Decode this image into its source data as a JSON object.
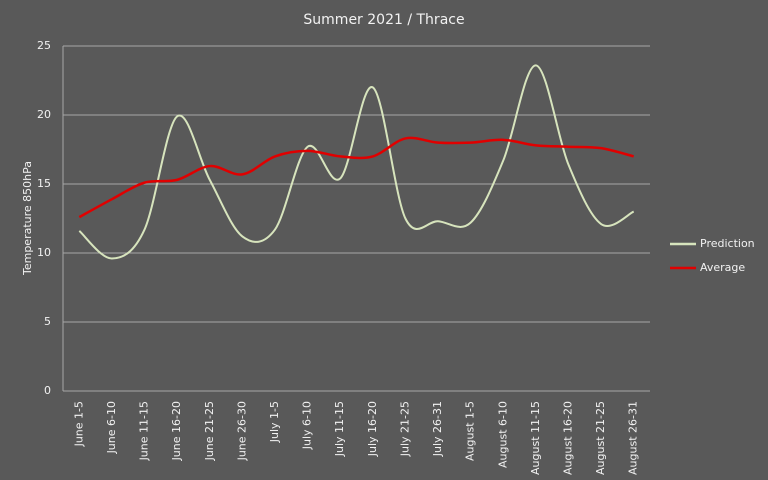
{
  "chart_data": {
    "type": "line",
    "title": "Summer 2021 / Thrace",
    "y_label": "Temperature 850hPa",
    "categories": [
      "June 1-5",
      "June 6-10",
      "June 11-15",
      "June 16-20",
      "June 21-25",
      "June 26-30",
      "July 1-5",
      "July 6-10",
      "July 11-15",
      "July 16-20",
      "July 21-25",
      "July 26-31",
      "August 1-5",
      "August 6-10",
      "August 11-15",
      "August 16-20",
      "August 21-25",
      "August 26-31"
    ],
    "series": [
      {
        "name": "Prediction",
        "color": "#d7e4bd",
        "values": [
          11.6,
          9.6,
          11.7,
          19.9,
          15.3,
          11.2,
          11.7,
          17.7,
          15.4,
          22.0,
          12.5,
          12.3,
          12.2,
          16.7,
          23.6,
          16.4,
          12.1,
          13.0
        ]
      },
      {
        "name": "Average",
        "color": "#e00000",
        "values": [
          12.6,
          13.9,
          15.1,
          15.3,
          16.3,
          15.7,
          17.0,
          17.4,
          17.0,
          17.0,
          18.3,
          18.0,
          18.0,
          18.2,
          17.8,
          17.7,
          17.6,
          17.0
        ]
      }
    ],
    "ylim": [
      0,
      25
    ],
    "yticks": [
      0,
      5,
      10,
      15,
      20,
      25
    ],
    "grid": true,
    "legend": "right",
    "smooth": true
  }
}
